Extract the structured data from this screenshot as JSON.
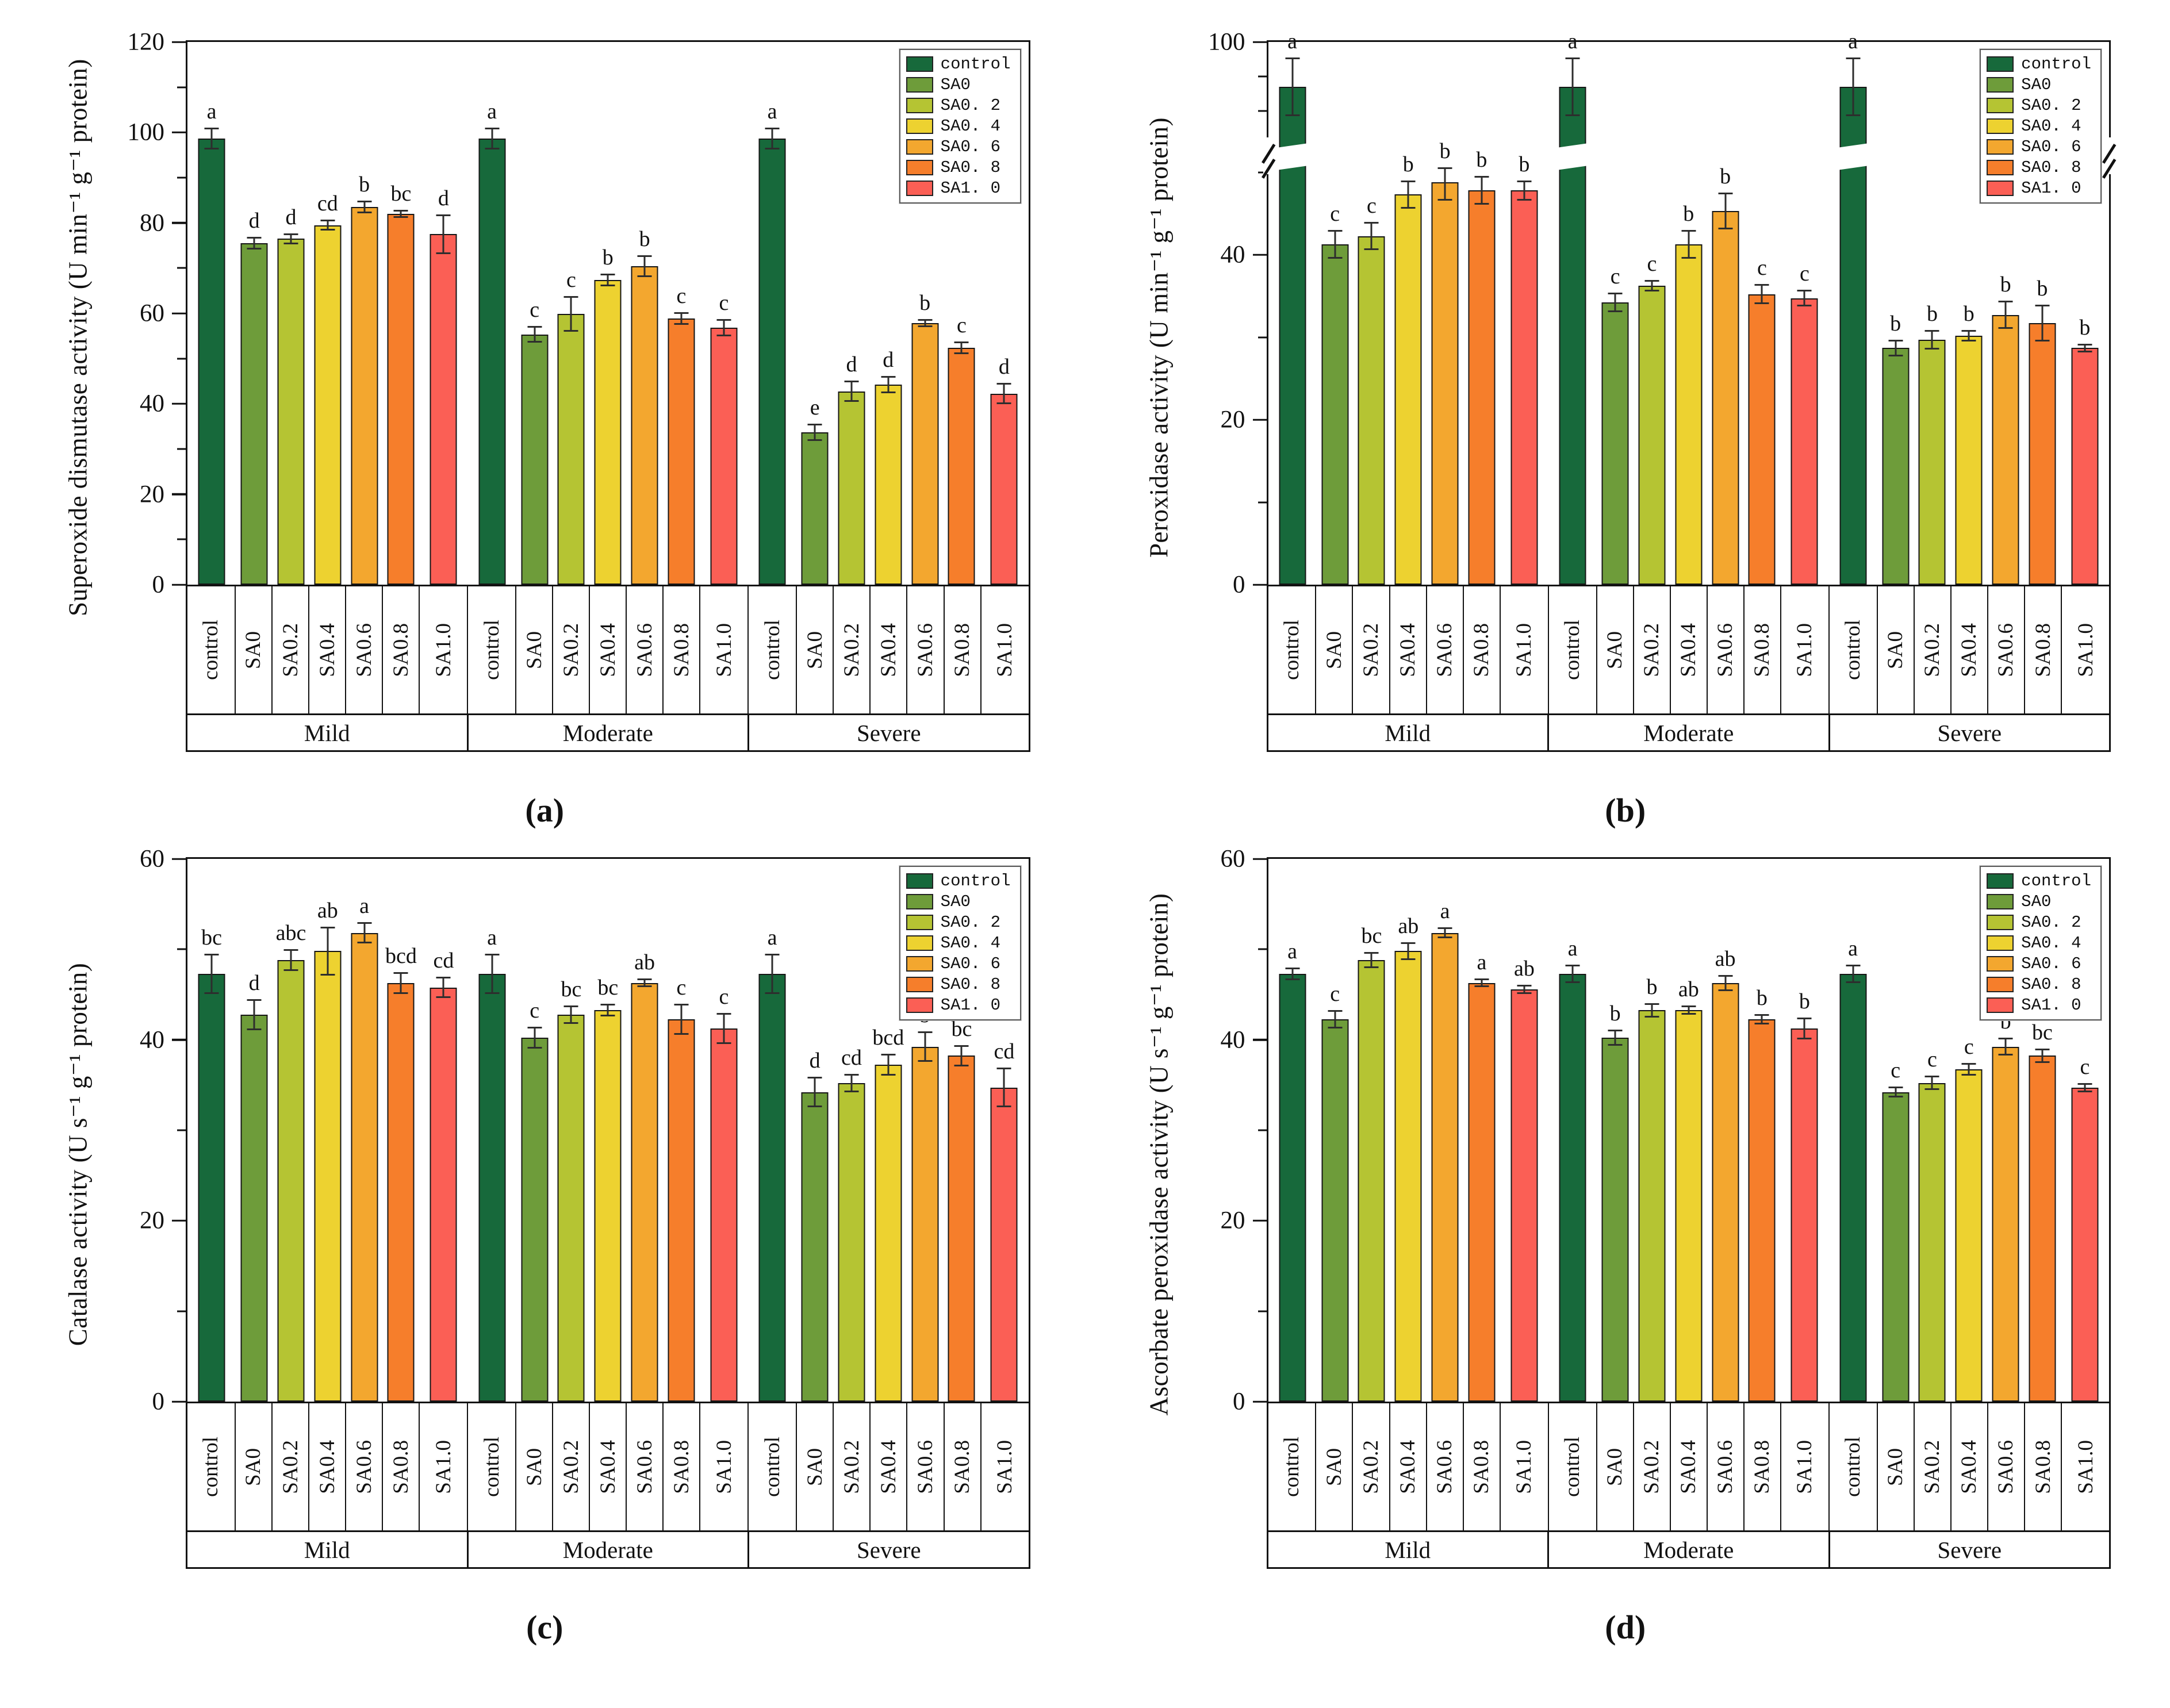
{
  "legend": {
    "items": [
      {
        "label": "control",
        "color": "#17693B"
      },
      {
        "label": "SA0",
        "color": "#6E9C3A"
      },
      {
        "label": "SA0. 2",
        "color": "#B5C433"
      },
      {
        "label": "SA0. 4",
        "color": "#EDD230"
      },
      {
        "label": "SA0. 6",
        "color": "#F3A72F"
      },
      {
        "label": "SA0. 8",
        "color": "#F67E2B"
      },
      {
        "label": "SA1. 0",
        "color": "#FB5F55"
      }
    ]
  },
  "chart_data": [
    {
      "type": "bar",
      "panel_label": "(a)",
      "ylabel": "Superoxide dismutase activity (U min⁻¹ g⁻¹ protein)",
      "ylim": [
        0,
        120
      ],
      "yticks_major": [
        0,
        20,
        40,
        60,
        80,
        100,
        120
      ],
      "yticks_minor": [
        10,
        30,
        50,
        70,
        90,
        110
      ],
      "axis_break": null,
      "categories": [
        "control",
        "SA0",
        "SA0.2",
        "SA0.4",
        "SA0.6",
        "SA0.8",
        "SA1.0"
      ],
      "group_labels": [
        "Mild",
        "Moderate",
        "Severe"
      ],
      "legend_position": "top-right",
      "grid": false,
      "series": [
        {
          "group": "Mild",
          "values": [
            98,
            75,
            76,
            79,
            83,
            81.5,
            77
          ],
          "errors": [
            2,
            1,
            0.8,
            0.8,
            1,
            0.5,
            4
          ],
          "sig_letters": [
            "a",
            "d",
            "d",
            "cd",
            "b",
            "bc",
            "d"
          ]
        },
        {
          "group": "Moderate",
          "values": [
            98,
            55,
            59.5,
            67,
            70,
            58.5,
            56.5
          ],
          "errors": [
            2,
            1.5,
            3.5,
            1,
            2,
            1,
            1.5
          ],
          "sig_letters": [
            "a",
            "c",
            "c",
            "b",
            "b",
            "c",
            "c"
          ]
        },
        {
          "group": "Severe",
          "values": [
            98,
            33.5,
            42.5,
            44,
            57.5,
            52,
            42
          ],
          "errors": [
            2,
            1.5,
            2,
            1.5,
            0.5,
            1,
            2
          ],
          "sig_letters": [
            "a",
            "e",
            "d",
            "d",
            "b",
            "c",
            "d"
          ]
        }
      ]
    },
    {
      "type": "bar",
      "panel_label": "(b)",
      "ylabel": "Peroxidase activity (U min⁻¹ g⁻¹ protein)",
      "ylim": [
        0,
        100
      ],
      "yticks_major": [
        0,
        20,
        40,
        100
      ],
      "yticks_minor": [
        10,
        30,
        50,
        90,
        95
      ],
      "axis_break": {
        "lower": [
          0,
          50
        ],
        "upper": [
          85,
          100
        ],
        "lower_fraction": 0.76,
        "gap_fraction": 0.05
      },
      "categories": [
        "control",
        "SA0",
        "SA0.2",
        "SA0.4",
        "SA0.6",
        "SA0.8",
        "SA1.0"
      ],
      "group_labels": [
        "Mild",
        "Moderate",
        "Severe"
      ],
      "legend_position": "top-right",
      "grid": false,
      "series": [
        {
          "group": "Mild",
          "values": [
            93,
            41,
            42,
            47,
            48.5,
            47.5,
            47.5
          ],
          "errors": [
            4,
            1.5,
            1.5,
            1.5,
            2,
            1.5,
            1
          ],
          "sig_letters": [
            "a",
            "c",
            "c",
            "b",
            "b",
            "b",
            "b"
          ]
        },
        {
          "group": "Moderate",
          "values": [
            93,
            34,
            36,
            41,
            45,
            35,
            34.5
          ],
          "errors": [
            4,
            1,
            0.5,
            1.5,
            2,
            1,
            0.8
          ],
          "sig_letters": [
            "a",
            "c",
            "c",
            "b",
            "b",
            "c",
            "c"
          ]
        },
        {
          "group": "Severe",
          "values": [
            93,
            28.5,
            29.5,
            30,
            32.5,
            31.5,
            28.5
          ],
          "errors": [
            4,
            0.8,
            1,
            0.5,
            1.5,
            2,
            0.3
          ],
          "sig_letters": [
            "a",
            "b",
            "b",
            "b",
            "b",
            "b",
            "b"
          ]
        }
      ]
    },
    {
      "type": "bar",
      "panel_label": "(c)",
      "ylabel": "Catalase activity (U s⁻¹ g⁻¹ protein)",
      "ylim": [
        0,
        60
      ],
      "yticks_major": [
        0,
        20,
        40,
        60
      ],
      "yticks_minor": [
        10,
        30,
        50
      ],
      "axis_break": null,
      "categories": [
        "control",
        "SA0",
        "SA0.2",
        "SA0.4",
        "SA0.6",
        "SA0.8",
        "SA1.0"
      ],
      "group_labels": [
        "Mild",
        "Moderate",
        "Severe"
      ],
      "legend_position": "top-right",
      "grid": false,
      "series": [
        {
          "group": "Mild",
          "values": [
            47,
            42.5,
            48.5,
            49.5,
            51.5,
            46,
            45.5
          ],
          "errors": [
            2,
            1.5,
            1,
            2.5,
            1,
            1,
            1
          ],
          "sig_letters": [
            "bc",
            "d",
            "abc",
            "ab",
            "a",
            "bcd",
            "cd"
          ]
        },
        {
          "group": "Moderate",
          "values": [
            47,
            40,
            42.5,
            43,
            46,
            42,
            41
          ],
          "errors": [
            2,
            1,
            0.8,
            0.5,
            0.3,
            1.5,
            1.5
          ],
          "sig_letters": [
            "a",
            "c",
            "bc",
            "bc",
            "ab",
            "c",
            "c"
          ]
        },
        {
          "group": "Severe",
          "values": [
            47,
            34,
            35,
            37,
            39,
            38,
            34.5
          ],
          "errors": [
            2,
            1.5,
            0.8,
            1,
            1.5,
            1,
            2
          ],
          "sig_letters": [
            "a",
            "d",
            "cd",
            "bcd",
            "b",
            "bc",
            "cd"
          ]
        }
      ]
    },
    {
      "type": "bar",
      "panel_label": "(d)",
      "ylabel": "Ascorbate peroxidase activity (U s⁻¹ g⁻¹ protein)",
      "ylim": [
        0,
        60
      ],
      "yticks_major": [
        0,
        20,
        40,
        60
      ],
      "yticks_minor": [
        10,
        30,
        50
      ],
      "axis_break": null,
      "categories": [
        "control",
        "SA0",
        "SA0.2",
        "SA0.4",
        "SA0.6",
        "SA0.8",
        "SA1.0"
      ],
      "group_labels": [
        "Mild",
        "Moderate",
        "Severe"
      ],
      "legend_position": "top-right",
      "grid": false,
      "series": [
        {
          "group": "Mild",
          "values": [
            47,
            42,
            48.5,
            49.5,
            51.5,
            46,
            45.3
          ],
          "errors": [
            0.5,
            0.8,
            0.7,
            0.8,
            0.4,
            0.3,
            0.3
          ],
          "sig_letters": [
            "a",
            "c",
            "bc",
            "ab",
            "a",
            "a",
            "ab"
          ]
        },
        {
          "group": "Moderate",
          "values": [
            47,
            40,
            43,
            43,
            46,
            42,
            41
          ],
          "errors": [
            0.8,
            0.7,
            0.6,
            0.3,
            0.7,
            0.4,
            1
          ],
          "sig_letters": [
            "a",
            "b",
            "b",
            "ab",
            "ab",
            "b",
            "b"
          ]
        },
        {
          "group": "Severe",
          "values": [
            47,
            34,
            35,
            36.5,
            39,
            38,
            34.5
          ],
          "errors": [
            0.8,
            0.4,
            0.6,
            0.5,
            0.8,
            0.6,
            0.3
          ],
          "sig_letters": [
            "a",
            "c",
            "c",
            "c",
            "b",
            "bc",
            "c"
          ]
        }
      ]
    }
  ]
}
